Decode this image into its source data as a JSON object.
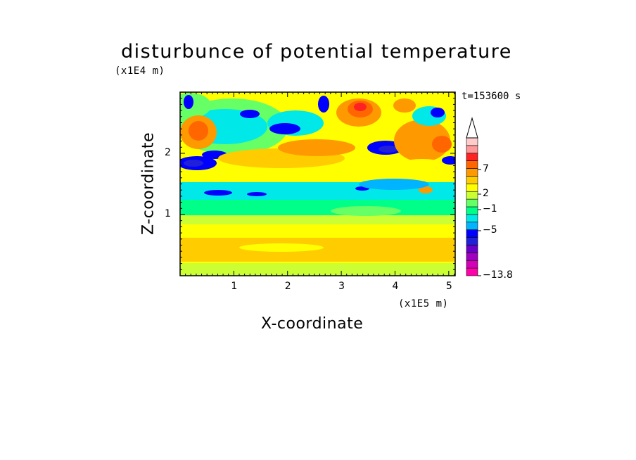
{
  "chart_data": {
    "type": "heatmap",
    "title": "disturbunce of potential temperature",
    "xlabel": "X-coordinate",
    "ylabel": "Z-coordinate",
    "x_multiplier_label": "(x1E5 m)",
    "y_multiplier_label": "(x1E4 m)",
    "time_label": "t=153600 s",
    "x_range": [
      0,
      5.12
    ],
    "y_range": [
      0,
      3.0
    ],
    "x_ticks": [
      "1",
      "2",
      "3",
      "4",
      "5"
    ],
    "y_ticks": [
      "1",
      "2"
    ],
    "colorbar": {
      "labels": [
        "7",
        "2",
        "−1",
        "−5",
        "−13.8"
      ],
      "color_levels": [
        "#ff00aa",
        "#d400b8",
        "#a000c0",
        "#6a00c8",
        "#2020d8",
        "#0000ff",
        "#00b4ff",
        "#00e8e8",
        "#00ff88",
        "#66ff66",
        "#ccff33",
        "#ffff00",
        "#ffcc00",
        "#ff9900",
        "#ff6600",
        "#ff2222",
        "#ff9999",
        "#ffcccc"
      ],
      "extends_top": true
    },
    "grid": false
  }
}
